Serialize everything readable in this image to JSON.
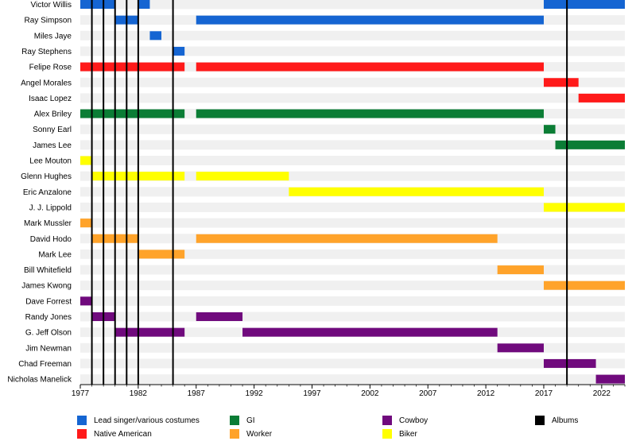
{
  "chart_data": {
    "type": "bar",
    "subtype": "timeline",
    "title": "",
    "xlabel": "",
    "ylabel": "",
    "xlim": [
      1977,
      2024
    ],
    "x_ticks": [
      1977,
      1982,
      1987,
      1992,
      1997,
      2002,
      2007,
      2012,
      2017,
      2022
    ],
    "grid": "alternating row bands",
    "legend_position": "bottom",
    "categories": [
      "Victor Willis",
      "Ray Simpson",
      "Miles Jaye",
      "Ray Stephens",
      "Felipe Rose",
      "Angel Morales",
      "Isaac Lopez",
      "Alex Briley",
      "Sonny Earl",
      "James Lee",
      "Lee Mouton",
      "Glenn Hughes",
      "Eric Anzalone",
      "J. J. Lippold",
      "Mark Mussler",
      "David Hodo",
      "Mark Lee",
      "Bill Whitefield",
      "James Kwong",
      "Dave Forrest",
      "Randy Jones",
      "G. Jeff Olson",
      "Jim Newman",
      "Chad Freeman",
      "Nicholas Manelick"
    ],
    "roles": [
      {
        "name": "Lead singer/various costumes",
        "color": "#1565d2"
      },
      {
        "name": "Native American",
        "color": "#ff1a1a"
      },
      {
        "name": "GI",
        "color": "#0b7d35"
      },
      {
        "name": "Worker",
        "color": "#ffa32a"
      },
      {
        "name": "Cowboy",
        "color": "#700a7d"
      },
      {
        "name": "Biker",
        "color": "#ffff00"
      }
    ],
    "albums_label": "Albums",
    "albums_color": "#000000",
    "albums": [
      1978,
      1979,
      1980,
      1981,
      1982,
      1985,
      2019
    ],
    "bars": [
      {
        "member": "Victor Willis",
        "role": 0,
        "start": 1977.0,
        "end": 1980.0
      },
      {
        "member": "Victor Willis",
        "role": 0,
        "start": 1982.0,
        "end": 1983.0
      },
      {
        "member": "Victor Willis",
        "role": 0,
        "start": 2017.0,
        "end": 2024.0
      },
      {
        "member": "Ray Simpson",
        "role": 0,
        "start": 1980.0,
        "end": 1982.0
      },
      {
        "member": "Ray Simpson",
        "role": 0,
        "start": 1987.0,
        "end": 2017.0
      },
      {
        "member": "Miles Jaye",
        "role": 0,
        "start": 1983.0,
        "end": 1984.0
      },
      {
        "member": "Ray Stephens",
        "role": 0,
        "start": 1985.0,
        "end": 1986.0
      },
      {
        "member": "Felipe Rose",
        "role": 1,
        "start": 1977.0,
        "end": 1986.0
      },
      {
        "member": "Felipe Rose",
        "role": 1,
        "start": 1987.0,
        "end": 2017.0
      },
      {
        "member": "Angel Morales",
        "role": 1,
        "start": 2017.0,
        "end": 2020.0
      },
      {
        "member": "Isaac Lopez",
        "role": 1,
        "start": 2020.0,
        "end": 2024.0
      },
      {
        "member": "Alex Briley",
        "role": 2,
        "start": 1977.0,
        "end": 1986.0
      },
      {
        "member": "Alex Briley",
        "role": 2,
        "start": 1987.0,
        "end": 2017.0
      },
      {
        "member": "Sonny Earl",
        "role": 2,
        "start": 2017.0,
        "end": 2018.0
      },
      {
        "member": "James Lee",
        "role": 2,
        "start": 2018.0,
        "end": 2024.0
      },
      {
        "member": "Lee Mouton",
        "role": 5,
        "start": 1977.0,
        "end": 1978.0
      },
      {
        "member": "Glenn Hughes",
        "role": 5,
        "start": 1978.0,
        "end": 1986.0
      },
      {
        "member": "Glenn Hughes",
        "role": 5,
        "start": 1987.0,
        "end": 1995.0
      },
      {
        "member": "Eric Anzalone",
        "role": 5,
        "start": 1995.0,
        "end": 2017.0
      },
      {
        "member": "J. J. Lippold",
        "role": 5,
        "start": 2017.0,
        "end": 2024.0
      },
      {
        "member": "Mark Mussler",
        "role": 3,
        "start": 1977.0,
        "end": 1978.0
      },
      {
        "member": "David Hodo",
        "role": 3,
        "start": 1978.0,
        "end": 1982.0
      },
      {
        "member": "David Hodo",
        "role": 3,
        "start": 1987.0,
        "end": 2013.0
      },
      {
        "member": "Mark Lee",
        "role": 3,
        "start": 1982.0,
        "end": 1986.0
      },
      {
        "member": "Bill Whitefield",
        "role": 3,
        "start": 2013.0,
        "end": 2017.0
      },
      {
        "member": "James Kwong",
        "role": 3,
        "start": 2017.0,
        "end": 2024.0
      },
      {
        "member": "Dave Forrest",
        "role": 4,
        "start": 1977.0,
        "end": 1978.0
      },
      {
        "member": "Randy Jones",
        "role": 4,
        "start": 1978.0,
        "end": 1980.0
      },
      {
        "member": "Randy Jones",
        "role": 4,
        "start": 1987.0,
        "end": 1991.0
      },
      {
        "member": "G. Jeff Olson",
        "role": 4,
        "start": 1980.0,
        "end": 1986.0
      },
      {
        "member": "G. Jeff Olson",
        "role": 4,
        "start": 1991.0,
        "end": 2013.0
      },
      {
        "member": "Jim Newman",
        "role": 4,
        "start": 2013.0,
        "end": 2017.0
      },
      {
        "member": "Chad Freeman",
        "role": 4,
        "start": 2017.0,
        "end": 2021.5
      },
      {
        "member": "Nicholas Manelick",
        "role": 4,
        "start": 2021.5,
        "end": 2024.0
      }
    ],
    "row_band_color": "#f0f0f0"
  }
}
